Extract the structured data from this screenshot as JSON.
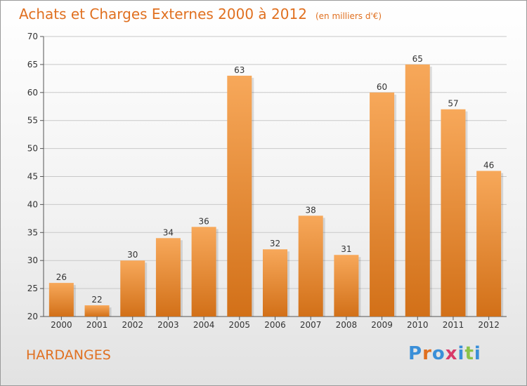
{
  "title": "Achats et Charges Externes 2000 à 2012",
  "unit_note": "(en milliers d'€)",
  "commune": "HARDANGES",
  "logo": {
    "text": "Proxiti",
    "letter_colors": [
      "#3a8fd8",
      "#e07020",
      "#3a8fd8",
      "#d83a6a",
      "#3a8fd8",
      "#8bc34a",
      "#3a8fd8"
    ]
  },
  "colors": {
    "bar_light": "#f7a85a",
    "bar_dark": "#d27018",
    "title": "#e07020",
    "grid": "#c8c8c8"
  },
  "chart_data": {
    "type": "bar",
    "title": "Achats et Charges Externes 2000 à 2012",
    "subtitle": "(en milliers d'€)",
    "categories": [
      "2000",
      "2001",
      "2002",
      "2003",
      "2004",
      "2005",
      "2006",
      "2007",
      "2008",
      "2009",
      "2010",
      "2011",
      "2012"
    ],
    "values": [
      26,
      22,
      30,
      34,
      36,
      63,
      32,
      38,
      31,
      60,
      65,
      57,
      46
    ],
    "ylim": [
      20,
      70
    ],
    "yticks": [
      20,
      25,
      30,
      35,
      40,
      45,
      50,
      55,
      60,
      65,
      70
    ],
    "grid": true,
    "data_labels": true
  }
}
